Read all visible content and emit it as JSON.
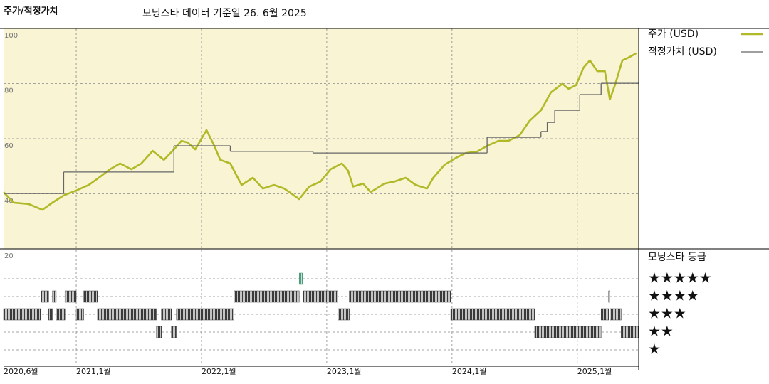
{
  "chart_data": {
    "type": "line",
    "title": "주가/적정가치",
    "subtitle": "모닝스타 데이터 기준일 26. 6월 2025",
    "xlim": [
      2020.42,
      2025.49
    ],
    "xticks": [
      {
        "value": 2020.42,
        "label": "2020,6월"
      },
      {
        "value": 2021,
        "label": "2021,1월"
      },
      {
        "value": 2022,
        "label": "2022,1월"
      },
      {
        "value": 2023,
        "label": "2023,1월"
      },
      {
        "value": 2024,
        "label": "2024,1월"
      },
      {
        "value": 2025,
        "label": "2025,1월"
      }
    ],
    "ylim": [
      20,
      100
    ],
    "yticks": [
      20,
      40,
      60,
      80,
      100
    ],
    "grid": true,
    "background": "#f8f4d4",
    "series": [
      {
        "name": "주가 (USD)",
        "color": "#b1b927",
        "x": [
          2020.42,
          2020.5,
          2020.62,
          2020.73,
          2020.81,
          2020.9,
          2021.0,
          2021.1,
          2021.18,
          2021.27,
          2021.35,
          2021.44,
          2021.52,
          2021.61,
          2021.7,
          2021.78,
          2021.84,
          2021.89,
          2021.95,
          2022.04,
          2022.09,
          2022.15,
          2022.23,
          2022.32,
          2022.41,
          2022.49,
          2022.58,
          2022.66,
          2022.78,
          2022.86,
          2022.95,
          2023.03,
          2023.12,
          2023.17,
          2023.21,
          2023.29,
          2023.35,
          2023.46,
          2023.54,
          2023.63,
          2023.71,
          2023.8,
          2023.85,
          2023.94,
          2024.03,
          2024.11,
          2024.2,
          2024.28,
          2024.37,
          2024.45,
          2024.54,
          2024.62,
          2024.71,
          2024.79,
          2024.88,
          2024.93,
          2024.99,
          2025.05,
          2025.1,
          2025.16,
          2025.22,
          2025.26,
          2025.3,
          2025.36,
          2025.42,
          2025.47
        ],
        "values": [
          40.6,
          36.8,
          36.3,
          34.2,
          36.8,
          39.4,
          41.2,
          43.2,
          45.8,
          48.9,
          51,
          48.9,
          51,
          55.6,
          52.3,
          56.1,
          59.2,
          58.6,
          56.1,
          63.1,
          58.6,
          52.3,
          51,
          43.2,
          45.8,
          41.9,
          43.2,
          41.9,
          38.1,
          42.6,
          44.4,
          48.9,
          51,
          48.4,
          42.6,
          43.7,
          40.6,
          43.7,
          44.4,
          45.8,
          43.2,
          41.9,
          45.8,
          50.5,
          53,
          54.8,
          55.3,
          57.4,
          59.2,
          59.2,
          61.3,
          66.5,
          70.3,
          76.8,
          79.9,
          78.1,
          79.4,
          85.8,
          88.4,
          84.5,
          84.5,
          74.2,
          79.4,
          88.4,
          89.7,
          91
        ]
      },
      {
        "name": "적정가치 (USD)",
        "color": "#666666",
        "step": "post",
        "x": [
          2020.42,
          2020.9,
          2021.78,
          2022.23,
          2022.89,
          2024.28,
          2024.71,
          2024.76,
          2024.82,
          2025.02,
          2025.19
        ],
        "values": [
          40.1,
          47.9,
          57.4,
          55.4,
          54.8,
          60.5,
          62.6,
          65.9,
          70.3,
          76,
          80.1
        ]
      }
    ],
    "star_ratings": {
      "title": "모닝스타 등급",
      "labels": [
        "★★★★★",
        "★★★★",
        "★★★",
        "★★",
        "★"
      ],
      "levels": [
        5,
        4,
        3,
        2,
        1
      ],
      "color": "#3a3a3a",
      "top_color": "#4e9c7e",
      "x": [
        2020.42,
        2020.72,
        2020.78,
        2020.81,
        2020.84,
        2020.91,
        2021.0,
        2021.06,
        2021.17,
        2021.64,
        2021.68,
        2021.76,
        2021.8,
        2022.26,
        2022.78,
        2022.81,
        2023.09,
        2023.18,
        2023.99,
        2024.66,
        2025.19,
        2025.25,
        2025.26,
        2025.35
      ],
      "values": [
        3,
        4,
        3,
        4,
        3,
        4,
        3,
        4,
        3,
        2,
        3,
        2,
        3,
        4,
        5,
        4,
        3,
        4,
        3,
        2,
        3,
        4,
        3,
        2
      ]
    }
  }
}
